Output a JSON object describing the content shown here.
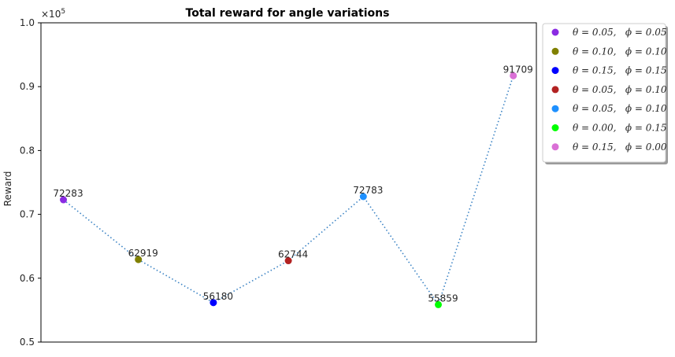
{
  "chart_data": {
    "type": "scatter",
    "title": "Total reward for angle variations",
    "xlabel": "",
    "ylabel": "Reward",
    "y_offset_text": "×10",
    "y_offset_exp": "5",
    "ylim": [
      0.5,
      1.0
    ],
    "yticks": [
      "0.5",
      "0.6",
      "0.7",
      "0.8",
      "0.9",
      "1.0"
    ],
    "grid": false,
    "legend_position": "outside-right",
    "line_style": "dotted",
    "line_color": "#3b83c4",
    "points": [
      {
        "x": 0,
        "y": 72283,
        "label": "72283",
        "name": "θ = 0.05,   ϕ = 0.05",
        "color": "#8a2be2"
      },
      {
        "x": 1,
        "y": 62919,
        "label": "62919",
        "name": "θ = 0.10,   ϕ = 0.10",
        "color": "#808000"
      },
      {
        "x": 2,
        "y": 56180,
        "label": "56180",
        "name": "θ = 0.15,   ϕ = 0.15",
        "color": "#0000ff"
      },
      {
        "x": 3,
        "y": 62744,
        "label": "62744",
        "name": "θ = 0.05,   ϕ = 0.10",
        "color": "#b22222"
      },
      {
        "x": 4,
        "y": 72783,
        "label": "72783",
        "name": "θ = 0.05,   ϕ = 0.10",
        "color": "#1e90ff"
      },
      {
        "x": 5,
        "y": 55859,
        "label": "55859",
        "name": "θ = 0.00,   ϕ = 0.15",
        "color": "#00ff00"
      },
      {
        "x": 6,
        "y": 91709,
        "label": "91709",
        "name": "θ = 0.15,   ϕ = 0.00",
        "color": "#da70d6"
      }
    ]
  }
}
